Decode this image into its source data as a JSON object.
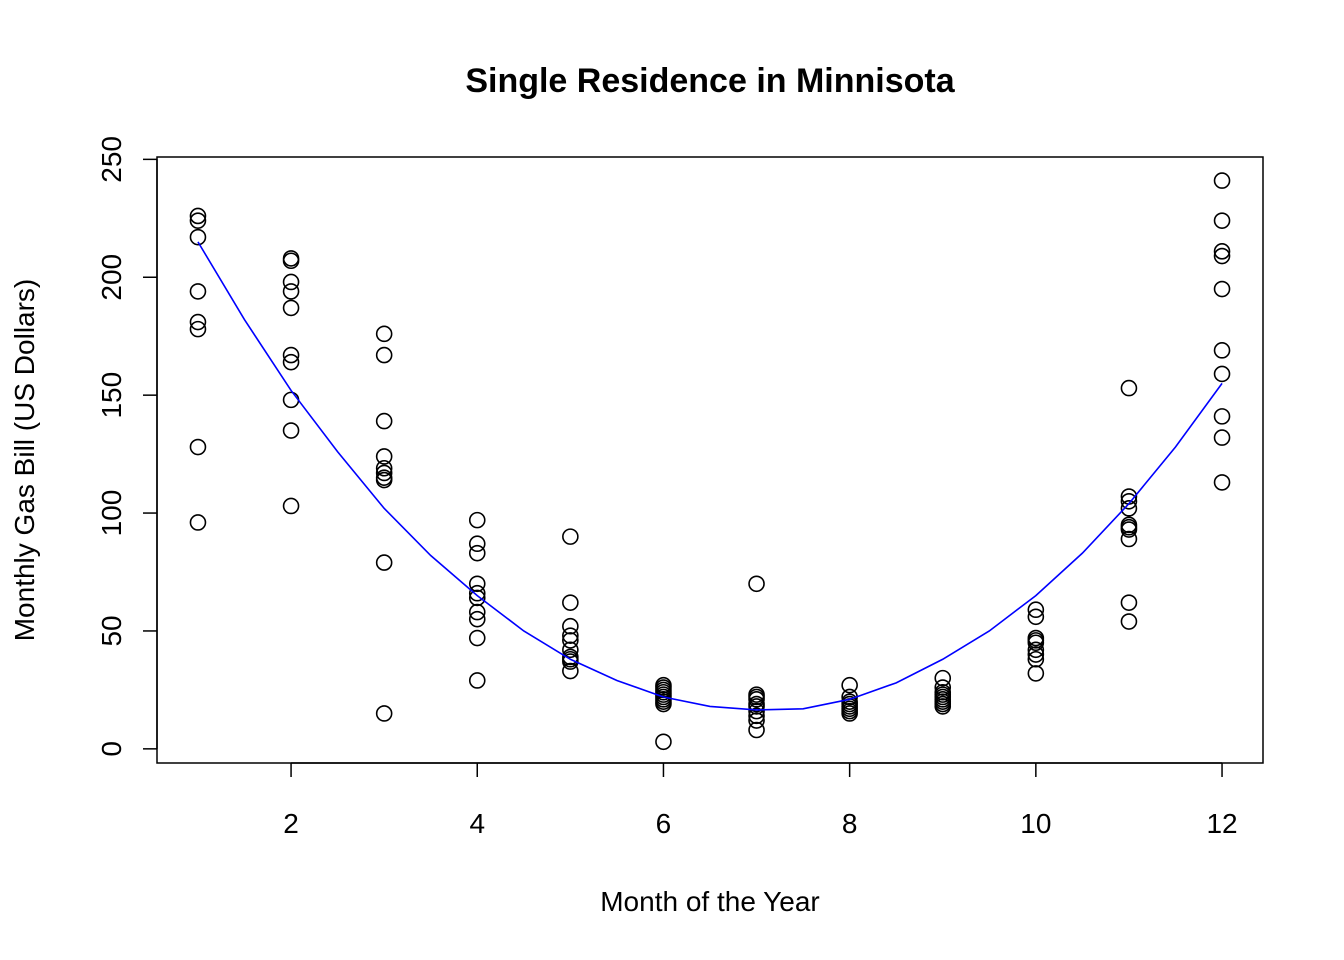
{
  "chart_data": {
    "type": "scatter",
    "title": "Single Residence in Minnisota",
    "xlabel": "Month of the Year",
    "ylabel": "Monthly Gas Bill (US Dollars)",
    "xlim": [
      0.56,
      12.44
    ],
    "ylim": [
      -6,
      251
    ],
    "x_ticks": [
      2,
      4,
      6,
      8,
      10,
      12
    ],
    "y_ticks": [
      0,
      50,
      100,
      150,
      200,
      250
    ],
    "grid": false,
    "legend": "none",
    "point_color": "#000000",
    "curve_color": "#0000ff",
    "points": [
      {
        "x": 1,
        "y": 226
      },
      {
        "x": 1,
        "y": 224
      },
      {
        "x": 1,
        "y": 217
      },
      {
        "x": 1,
        "y": 194
      },
      {
        "x": 1,
        "y": 181
      },
      {
        "x": 1,
        "y": 178
      },
      {
        "x": 1,
        "y": 128
      },
      {
        "x": 1,
        "y": 96
      },
      {
        "x": 2,
        "y": 208
      },
      {
        "x": 2,
        "y": 207
      },
      {
        "x": 2,
        "y": 198
      },
      {
        "x": 2,
        "y": 194
      },
      {
        "x": 2,
        "y": 187
      },
      {
        "x": 2,
        "y": 167
      },
      {
        "x": 2,
        "y": 164
      },
      {
        "x": 2,
        "y": 148
      },
      {
        "x": 2,
        "y": 135
      },
      {
        "x": 2,
        "y": 103
      },
      {
        "x": 3,
        "y": 176
      },
      {
        "x": 3,
        "y": 167
      },
      {
        "x": 3,
        "y": 139
      },
      {
        "x": 3,
        "y": 124
      },
      {
        "x": 3,
        "y": 119
      },
      {
        "x": 3,
        "y": 117
      },
      {
        "x": 3,
        "y": 115
      },
      {
        "x": 3,
        "y": 114
      },
      {
        "x": 3,
        "y": 79
      },
      {
        "x": 3,
        "y": 15
      },
      {
        "x": 4,
        "y": 97
      },
      {
        "x": 4,
        "y": 87
      },
      {
        "x": 4,
        "y": 83
      },
      {
        "x": 4,
        "y": 70
      },
      {
        "x": 4,
        "y": 66
      },
      {
        "x": 4,
        "y": 64
      },
      {
        "x": 4,
        "y": 58
      },
      {
        "x": 4,
        "y": 55
      },
      {
        "x": 4,
        "y": 47
      },
      {
        "x": 4,
        "y": 29
      },
      {
        "x": 5,
        "y": 90
      },
      {
        "x": 5,
        "y": 62
      },
      {
        "x": 5,
        "y": 52
      },
      {
        "x": 5,
        "y": 48
      },
      {
        "x": 5,
        "y": 46
      },
      {
        "x": 5,
        "y": 42
      },
      {
        "x": 5,
        "y": 39
      },
      {
        "x": 5,
        "y": 38
      },
      {
        "x": 5,
        "y": 37
      },
      {
        "x": 5,
        "y": 33
      },
      {
        "x": 6,
        "y": 27
      },
      {
        "x": 6,
        "y": 26
      },
      {
        "x": 6,
        "y": 25
      },
      {
        "x": 6,
        "y": 24
      },
      {
        "x": 6,
        "y": 23
      },
      {
        "x": 6,
        "y": 22
      },
      {
        "x": 6,
        "y": 21
      },
      {
        "x": 6,
        "y": 20
      },
      {
        "x": 6,
        "y": 19
      },
      {
        "x": 6,
        "y": 3
      },
      {
        "x": 7,
        "y": 70
      },
      {
        "x": 7,
        "y": 23
      },
      {
        "x": 7,
        "y": 22
      },
      {
        "x": 7,
        "y": 21
      },
      {
        "x": 7,
        "y": 19
      },
      {
        "x": 7,
        "y": 18
      },
      {
        "x": 7,
        "y": 16
      },
      {
        "x": 7,
        "y": 14
      },
      {
        "x": 7,
        "y": 12
      },
      {
        "x": 7,
        "y": 8
      },
      {
        "x": 8,
        "y": 27
      },
      {
        "x": 8,
        "y": 22
      },
      {
        "x": 8,
        "y": 20
      },
      {
        "x": 8,
        "y": 19
      },
      {
        "x": 8,
        "y": 18
      },
      {
        "x": 8,
        "y": 17
      },
      {
        "x": 8,
        "y": 16
      },
      {
        "x": 8,
        "y": 15
      },
      {
        "x": 9,
        "y": 30
      },
      {
        "x": 9,
        "y": 26
      },
      {
        "x": 9,
        "y": 24
      },
      {
        "x": 9,
        "y": 23
      },
      {
        "x": 9,
        "y": 22
      },
      {
        "x": 9,
        "y": 21
      },
      {
        "x": 9,
        "y": 20
      },
      {
        "x": 9,
        "y": 19
      },
      {
        "x": 9,
        "y": 18
      },
      {
        "x": 10,
        "y": 59
      },
      {
        "x": 10,
        "y": 56
      },
      {
        "x": 10,
        "y": 47
      },
      {
        "x": 10,
        "y": 46
      },
      {
        "x": 10,
        "y": 45
      },
      {
        "x": 10,
        "y": 42
      },
      {
        "x": 10,
        "y": 40
      },
      {
        "x": 10,
        "y": 38
      },
      {
        "x": 10,
        "y": 32
      },
      {
        "x": 11,
        "y": 153
      },
      {
        "x": 11,
        "y": 107
      },
      {
        "x": 11,
        "y": 105
      },
      {
        "x": 11,
        "y": 102
      },
      {
        "x": 11,
        "y": 95
      },
      {
        "x": 11,
        "y": 94
      },
      {
        "x": 11,
        "y": 93
      },
      {
        "x": 11,
        "y": 89
      },
      {
        "x": 11,
        "y": 62
      },
      {
        "x": 11,
        "y": 54
      },
      {
        "x": 12,
        "y": 241
      },
      {
        "x": 12,
        "y": 224
      },
      {
        "x": 12,
        "y": 211
      },
      {
        "x": 12,
        "y": 209
      },
      {
        "x": 12,
        "y": 195
      },
      {
        "x": 12,
        "y": 169
      },
      {
        "x": 12,
        "y": 159
      },
      {
        "x": 12,
        "y": 141
      },
      {
        "x": 12,
        "y": 132
      },
      {
        "x": 12,
        "y": 113
      }
    ],
    "fit_curve": {
      "type": "quadratic",
      "x": [
        1,
        1.5,
        2,
        2.5,
        3,
        3.5,
        4,
        4.5,
        5,
        5.5,
        6,
        6.5,
        7,
        7.5,
        8,
        8.5,
        9,
        9.5,
        10,
        10.5,
        11,
        11.5,
        12
      ],
      "y": [
        215,
        182,
        152,
        126,
        102,
        82,
        65,
        50,
        38,
        29,
        22,
        18,
        16.5,
        17,
        21,
        28,
        38,
        50,
        65,
        83,
        104,
        128,
        155
      ]
    }
  }
}
